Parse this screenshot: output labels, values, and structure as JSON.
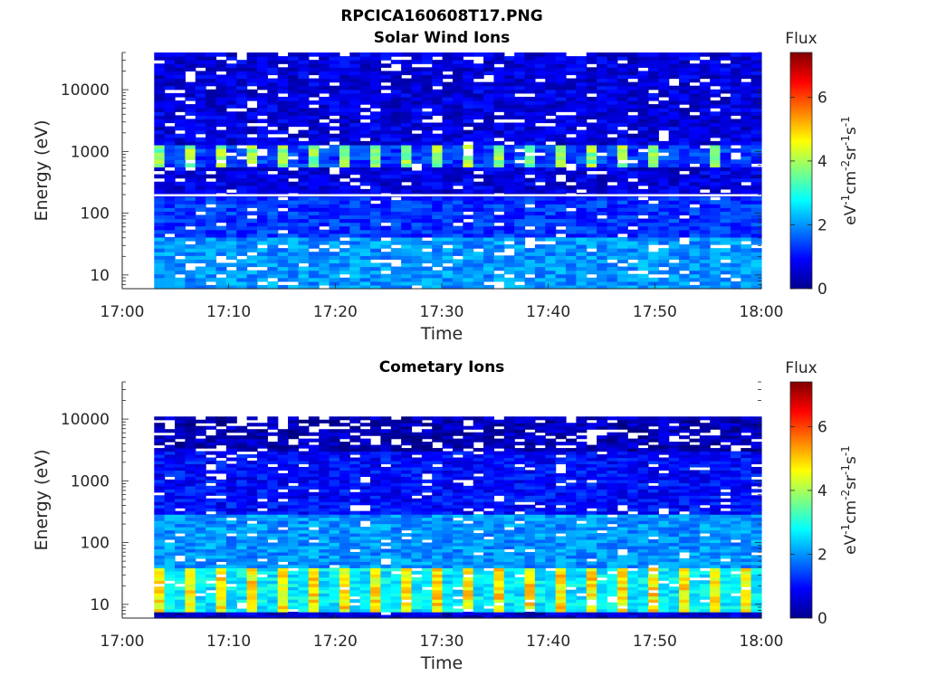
{
  "figure": {
    "title": "RPCICA160608T17.PNG"
  },
  "chart_data": [
    {
      "type": "heatmap",
      "title": "Solar Wind Ions",
      "xlabel": "Time",
      "ylabel": "Energy (eV)",
      "x_ticks": [
        "17:00",
        "17:10",
        "17:20",
        "17:30",
        "17:40",
        "17:50",
        "18:00"
      ],
      "xlim": [
        "17:00",
        "18:00"
      ],
      "data_start": "17:03",
      "y_scale": "log",
      "y_ticks": [
        10,
        100,
        1000,
        10000
      ],
      "y_tick_labels": [
        "10",
        "100",
        "1000",
        "10000"
      ],
      "ylim": [
        6,
        40000
      ],
      "colorbar": {
        "label": "Flux",
        "units_label": "eV-1cm-2sr-1s-1",
        "range": [
          0,
          7.4
        ],
        "ticks": [
          0,
          2,
          4,
          6
        ],
        "colormap": "jet"
      },
      "features": [
        {
          "energy_range_eV": [
            600,
            1300
          ],
          "flux_approx": 3.5,
          "description": "periodic solar wind proton beam bursts, roughly every 3.3 min, fading after 17:40"
        },
        {
          "energy_range_eV": [
            6,
            40
          ],
          "flux_approx": 2.0
        },
        {
          "energy_range_eV": [
            40,
            190
          ],
          "flux_approx": 1.3
        },
        {
          "energy_range_eV": [
            190,
            40000
          ],
          "flux_approx": 0.7
        },
        {
          "energy_eV": 195,
          "note": "data gap line"
        }
      ]
    },
    {
      "type": "heatmap",
      "title": "Cometary Ions",
      "xlabel": "Time",
      "ylabel": "Energy (eV)",
      "x_ticks": [
        "17:00",
        "17:10",
        "17:20",
        "17:30",
        "17:40",
        "17:50",
        "18:00"
      ],
      "xlim": [
        "17:00",
        "18:00"
      ],
      "data_start": "17:03",
      "y_scale": "log",
      "y_ticks": [
        10,
        100,
        1000,
        10000
      ],
      "y_tick_labels": [
        "10",
        "100",
        "1000",
        "10000"
      ],
      "ylim": [
        6,
        40000
      ],
      "data_top_eV": 11000,
      "colorbar": {
        "label": "Flux",
        "units_label": "eV-1cm-2sr-1s-1",
        "range": [
          0,
          7.4
        ],
        "ticks": [
          0,
          2,
          4,
          6
        ],
        "colormap": "jet"
      },
      "features": [
        {
          "energy_range_eV": [
            8,
            40
          ],
          "flux_approx": 4.5,
          "description": "periodic low-energy cometary ion bursts, roughly every 3.3 min"
        },
        {
          "energy_range_eV": [
            40,
            300
          ],
          "flux_approx": 2.0
        },
        {
          "energy_range_eV": [
            300,
            3000
          ],
          "flux_approx": 1.0
        },
        {
          "energy_range_eV": [
            3000,
            11000
          ],
          "flux_approx": 0.4
        }
      ]
    }
  ]
}
